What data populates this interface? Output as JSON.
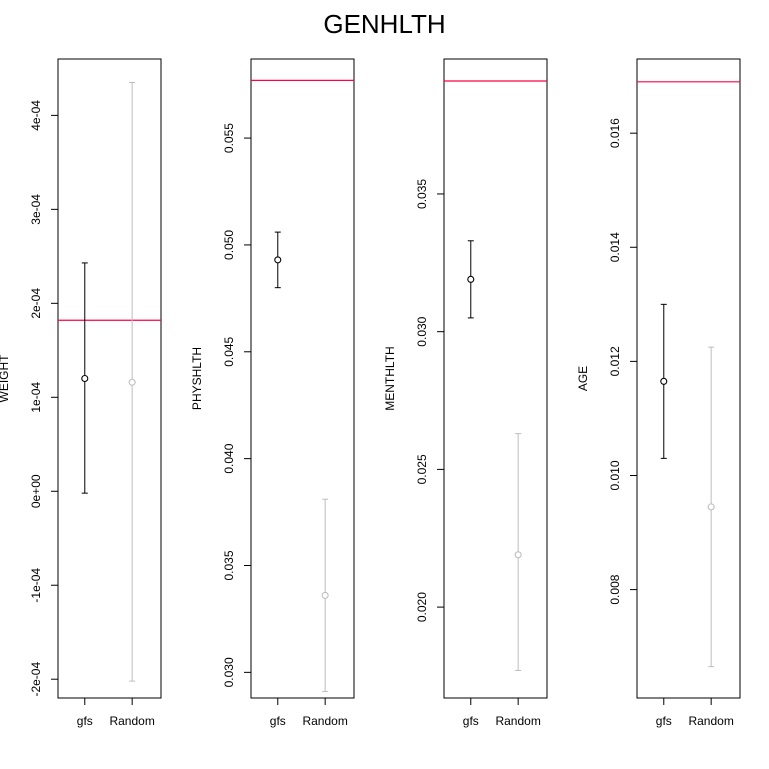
{
  "title": "GENHLTH",
  "colors": {
    "gfs": "#000000",
    "random": "#bebebe",
    "reference": "#ff0040"
  },
  "chart_data": [
    {
      "type": "scatter",
      "ylabel": "WEIGHT",
      "categories": [
        "gfs",
        "Random"
      ],
      "ylim": [
        -0.00022,
        0.00046
      ],
      "yticks": [
        -0.0002,
        -0.0001,
        0,
        0.0001,
        0.0002,
        0.0003,
        0.0004
      ],
      "ytick_labels": [
        "-2e-04",
        "-1e-04",
        "0e+00",
        "1e-04",
        "2e-04",
        "3e-04",
        "4e-04"
      ],
      "reference_line": 0.000182,
      "series": [
        {
          "category": "gfs",
          "value": 0.00012,
          "lower": -2e-06,
          "upper": 0.000243
        },
        {
          "category": "Random",
          "value": 0.000116,
          "lower": -0.000202,
          "upper": 0.000435
        }
      ]
    },
    {
      "type": "scatter",
      "ylabel": "PHYSHLTH",
      "categories": [
        "gfs",
        "Random"
      ],
      "ylim": [
        0.0288,
        0.0587
      ],
      "yticks": [
        0.03,
        0.035,
        0.04,
        0.045,
        0.05,
        0.055
      ],
      "ytick_labels": [
        "0.030",
        "0.035",
        "0.040",
        "0.045",
        "0.050",
        "0.055"
      ],
      "reference_line": 0.0577,
      "series": [
        {
          "category": "gfs",
          "value": 0.0493,
          "lower": 0.048,
          "upper": 0.0506
        },
        {
          "category": "Random",
          "value": 0.0336,
          "lower": 0.0291,
          "upper": 0.0381
        }
      ]
    },
    {
      "type": "scatter",
      "ylabel": "MENTHLTH",
      "categories": [
        "gfs",
        "Random"
      ],
      "ylim": [
        0.0167,
        0.0399
      ],
      "yticks": [
        0.02,
        0.025,
        0.03,
        0.035
      ],
      "ytick_labels": [
        "0.020",
        "0.025",
        "0.030",
        "0.035"
      ],
      "reference_line": 0.0391,
      "series": [
        {
          "category": "gfs",
          "value": 0.0319,
          "lower": 0.0305,
          "upper": 0.0333
        },
        {
          "category": "Random",
          "value": 0.0219,
          "lower": 0.0177,
          "upper": 0.0263
        }
      ]
    },
    {
      "type": "scatter",
      "ylabel": "AGE",
      "categories": [
        "gfs",
        "Random"
      ],
      "ylim": [
        0.0061,
        0.0173
      ],
      "yticks": [
        0.008,
        0.01,
        0.012,
        0.014,
        0.016
      ],
      "ytick_labels": [
        "0.008",
        "0.010",
        "0.012",
        "0.014",
        "0.016"
      ],
      "reference_line": 0.0169,
      "series": [
        {
          "category": "gfs",
          "value": 0.01165,
          "lower": 0.0103,
          "upper": 0.013
        },
        {
          "category": "Random",
          "value": 0.00945,
          "lower": 0.00665,
          "upper": 0.01225
        }
      ]
    }
  ]
}
